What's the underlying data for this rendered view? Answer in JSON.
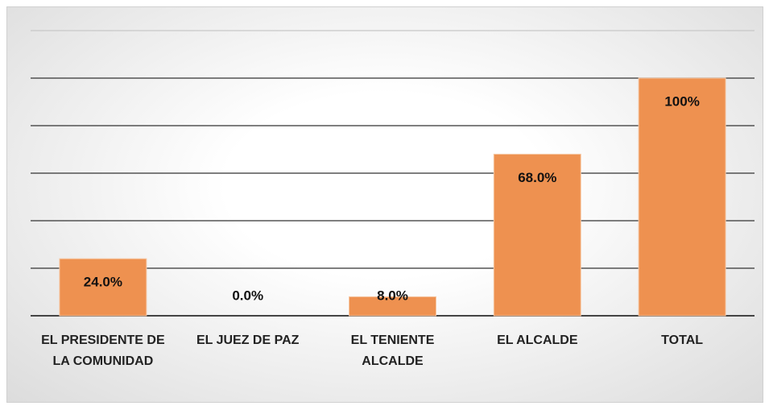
{
  "chart_data": {
    "type": "bar",
    "categories": [
      "EL PRESIDENTE DE LA COMUNIDAD",
      "EL JUEZ DE PAZ",
      "EL TENIENTE ALCALDE",
      "EL ALCALDE",
      "TOTAL"
    ],
    "values": [
      24,
      0,
      8,
      68,
      100
    ],
    "value_labels": [
      "24.0%",
      "0.0%",
      "8.0%",
      "68.0%",
      "100%"
    ],
    "color": "#ee9150",
    "ylim": [
      0,
      120
    ],
    "yticks": [
      0,
      20,
      40,
      60,
      80,
      100,
      120
    ],
    "grid": true
  }
}
